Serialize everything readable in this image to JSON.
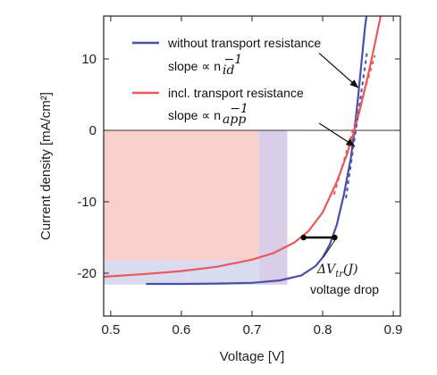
{
  "chart_data": {
    "type": "line",
    "title": "",
    "xlabel": "Voltage [V]",
    "ylabel": "Current density [mA/cm²]",
    "xlim": [
      0.49,
      0.91
    ],
    "ylim": [
      -26,
      16
    ],
    "xticks": [
      0.5,
      0.6,
      0.7,
      0.8,
      0.9
    ],
    "xtick_labels": [
      "0.5",
      "0.6",
      "0.7",
      "0.8",
      "0.9"
    ],
    "yticks": [
      10,
      0,
      -10,
      -20
    ],
    "ytick_labels": [
      "10",
      "0",
      "-10",
      "-20"
    ],
    "grid": false,
    "legend_position": "top-left",
    "series": [
      {
        "name": "without transport resistance",
        "slope_label": "slope ∝ n",
        "slope_sub": "id",
        "slope_sup": "−1",
        "color": "#4a50a8",
        "x": [
          0.55,
          0.6,
          0.65,
          0.7,
          0.74,
          0.77,
          0.79,
          0.8,
          0.81,
          0.82,
          0.83,
          0.84,
          0.845,
          0.85,
          0.855,
          0.86,
          0.862
        ],
        "y": [
          -21.5,
          -21.5,
          -21.45,
          -21.35,
          -21.0,
          -20.3,
          -19.0,
          -17.8,
          -16.0,
          -13.2,
          -9.0,
          -3.8,
          0,
          4.5,
          9.5,
          14.5,
          16.0
        ]
      },
      {
        "name": "incl. transport resistance",
        "slope_label": "slope ∝ n",
        "slope_sub": "app",
        "slope_sup": "−1",
        "color": "#e85a5a",
        "x": [
          0.49,
          0.55,
          0.6,
          0.65,
          0.7,
          0.73,
          0.76,
          0.78,
          0.8,
          0.82,
          0.835,
          0.845,
          0.855,
          0.865,
          0.875,
          0.882
        ],
        "y": [
          -20.5,
          -20.1,
          -19.7,
          -19.1,
          -18.1,
          -17.2,
          -15.7,
          -14.1,
          -11.5,
          -7.2,
          -3.2,
          0,
          3.8,
          8.0,
          12.6,
          16.0
        ]
      }
    ],
    "tangents": [
      {
        "series": "without transport resistance",
        "color": "#4a50a8",
        "x": [
          0.833,
          0.863
        ],
        "y": [
          -9.5,
          11.0
        ]
      },
      {
        "series": "incl. transport resistance",
        "color": "#e85a5a",
        "x": [
          0.816,
          0.874
        ],
        "y": [
          -9.0,
          10.5
        ]
      }
    ],
    "regions": [
      {
        "color": "#f9cfcb",
        "x": [
          0.49,
          0.71
        ],
        "y": [
          -18.2,
          0
        ]
      },
      {
        "color": "#d9cde9",
        "x": [
          0.71,
          0.75
        ],
        "y": [
          -21.6,
          0
        ]
      },
      {
        "color": "#d9dbef",
        "x": [
          0.49,
          0.71
        ],
        "y": [
          -21.6,
          -18.2
        ]
      }
    ],
    "voltage_drop": {
      "x": [
        0.773,
        0.817
      ],
      "y": -15.0,
      "label": "ΔV",
      "label_sub": "tr",
      "label_arg": "(J)",
      "caption": "voltage drop"
    },
    "annotation_arrows": [
      {
        "from": [
          0.795,
          10.8
        ],
        "to": [
          0.85,
          6.0
        ]
      },
      {
        "from": [
          0.795,
          1.0
        ],
        "to": [
          0.845,
          -2.2
        ]
      }
    ]
  },
  "colors": {
    "axis": "#222222",
    "zero_line": "#333333",
    "marker": "#000000"
  }
}
